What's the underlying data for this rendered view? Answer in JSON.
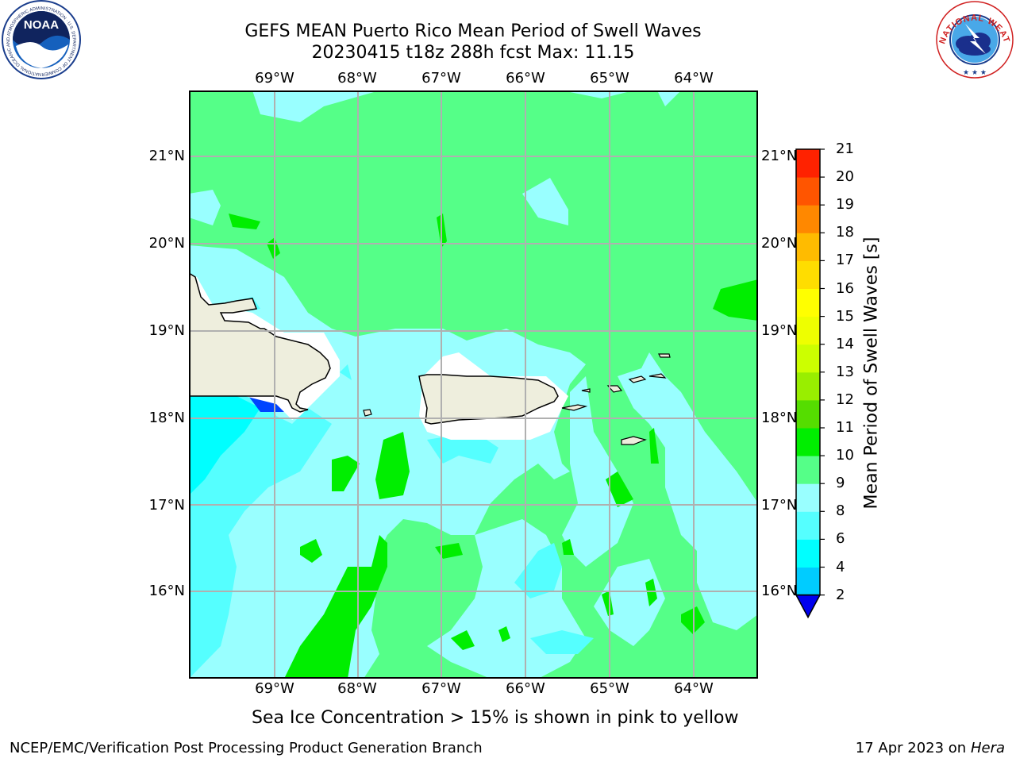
{
  "title_line1": "GEFS MEAN Puerto Rico Mean Period of Swell Waves",
  "title_line2": "20230415 t18z 288h fcst   Max: 11.15",
  "lon_labels": [
    "69°W",
    "68°W",
    "67°W",
    "66°W",
    "65°W",
    "64°W"
  ],
  "lat_labels": [
    "21°N",
    "20°N",
    "19°N",
    "18°N",
    "17°N",
    "16°N"
  ],
  "colorbar": {
    "label": "Mean Period of Swell Waves [s]",
    "ticks": [
      "2",
      "4",
      "6",
      "8",
      "9",
      "10",
      "11",
      "12",
      "13",
      "14",
      "15",
      "16",
      "17",
      "18",
      "19",
      "20",
      "21"
    ],
    "colors": [
      "#0044ff",
      "#00ccff",
      "#00ffff",
      "#55ffff",
      "#99ffff",
      "#55ff88",
      "#00ee00",
      "#55dd00",
      "#99ee00",
      "#ccff00",
      "#eeff00",
      "#ffff00",
      "#ffdd00",
      "#ffbb00",
      "#ff8800",
      "#ff5500",
      "#ff2200",
      "#ff0000"
    ],
    "under_color": "#0000ee"
  },
  "field_colors": {
    "green": "#55ff88",
    "bright_green": "#00ee00",
    "light_cyan": "#99ffff",
    "cyan": "#55ffff",
    "aqua": "#00ffff",
    "blue": "#0044ff",
    "land": "#eeeedd",
    "mask": "#ffffff"
  },
  "footer_note": "Sea Ice Concentration > 15% is shown in pink to yellow",
  "footer_left": "NCEP/EMC/Verification Post Processing Product Generation Branch",
  "footer_right_prefix": "17 Apr 2023 on ",
  "footer_right_machine": "Hera",
  "logos": {
    "left_text": "NOAA",
    "left_ring_text": "NATIONAL OCEANIC AND ATMOSPHERIC ADMINISTRATION · U.S. DEPARTMENT OF COMMERCE",
    "right_ring_text": "NATIONAL WEATHER SERVICE"
  }
}
